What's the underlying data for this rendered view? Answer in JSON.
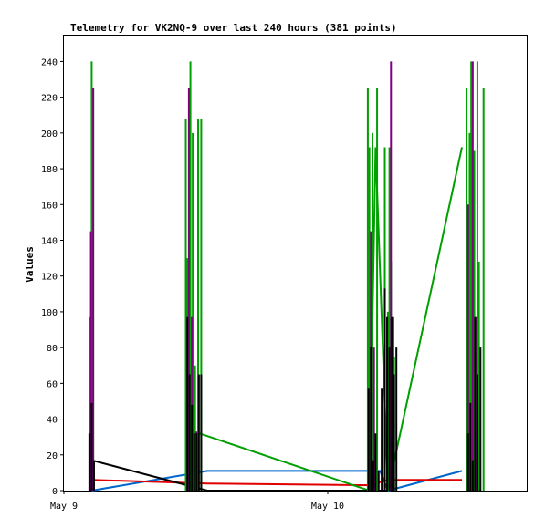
{
  "chart_data": {
    "type": "line",
    "title": "Telemetry for VK2NQ-9 over last 240 hours (381 points)",
    "xlabel": "",
    "ylabel": "Values",
    "ylim": [
      0,
      255
    ],
    "yticks": [
      0,
      20,
      40,
      60,
      80,
      100,
      120,
      140,
      160,
      180,
      200,
      220,
      240
    ],
    "xlim_hours": [
      0,
      30
    ],
    "xticks": [
      {
        "hour": 0,
        "label": "May 9"
      },
      {
        "hour": 17.1,
        "label": "May 10"
      }
    ],
    "grid": false,
    "legend": "none",
    "colors": {
      "green": "#00a000",
      "purple": "#800080",
      "black": "#000000",
      "red": "#e00000",
      "blue": "#0066cc"
    },
    "series": [
      {
        "color": "#0066cc",
        "points": [
          [
            1.8,
            0
          ],
          [
            9.3,
            11
          ],
          [
            20.5,
            11
          ],
          [
            21.0,
            0
          ],
          [
            25.8,
            11
          ]
        ]
      },
      {
        "color": "#e00000",
        "points": [
          [
            1.8,
            6
          ],
          [
            9.3,
            4
          ],
          [
            19.8,
            3
          ],
          [
            21.0,
            6
          ],
          [
            25.8,
            6
          ]
        ]
      },
      {
        "color": "#00a000",
        "points": [
          [
            8.8,
            32
          ],
          [
            19.8,
            0
          ],
          [
            20.2,
            192
          ],
          [
            21.0,
            0
          ],
          [
            25.8,
            192
          ]
        ]
      },
      {
        "color": "#000000",
        "points": [
          [
            1.8,
            17
          ],
          [
            9.3,
            0
          ],
          [
            21.0,
            0
          ]
        ]
      }
    ],
    "spikes": [
      {
        "color": "#00a000",
        "x": [
          1.7,
          1.8,
          1.9,
          7.9,
          8.0,
          8.2,
          8.35,
          8.5,
          8.7,
          8.9,
          19.7,
          19.8,
          20.0,
          20.3,
          20.8,
          21.0,
          21.1,
          21.2,
          21.4,
          26.1,
          26.3,
          26.4,
          26.6,
          26.8,
          26.9,
          27.2
        ],
        "values": [
          97,
          240,
          225,
          208,
          130,
          240,
          200,
          70,
          208,
          208,
          225,
          192,
          200,
          225,
          192,
          100,
          192,
          128,
          75,
          225,
          200,
          240,
          190,
          240,
          128,
          225
        ]
      },
      {
        "color": "#800080",
        "x": [
          1.75,
          1.9,
          8.1,
          8.3,
          8.6,
          19.9,
          20.1,
          21.2,
          21.35,
          26.2,
          26.5,
          26.7
        ],
        "values": [
          145,
          225,
          225,
          97,
          33,
          145,
          80,
          240,
          97,
          160,
          240,
          97
        ]
      },
      {
        "color": "#000000",
        "x": [
          1.65,
          1.8,
          1.95,
          8.0,
          8.15,
          8.3,
          8.45,
          8.6,
          8.75,
          8.9,
          19.75,
          19.9,
          20.05,
          20.2,
          20.4,
          20.6,
          20.8,
          20.95,
          21.1,
          21.25,
          21.4,
          21.55,
          26.2,
          26.35,
          26.5,
          26.65,
          26.8,
          27.0
        ],
        "values": [
          32,
          49,
          17,
          97,
          65,
          48,
          32,
          32,
          65,
          65,
          57,
          80,
          17,
          32,
          11,
          57,
          113,
          97,
          80,
          97,
          65,
          80,
          32,
          49,
          17,
          97,
          65,
          80
        ]
      }
    ]
  }
}
